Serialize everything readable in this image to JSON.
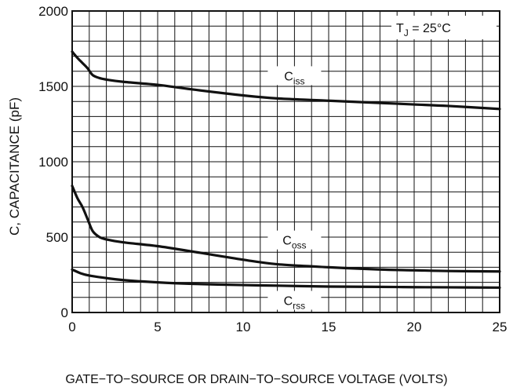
{
  "chart_data": {
    "type": "line",
    "title": "",
    "xlabel": "GATE−TO−SOURCE OR DRAIN−TO−SOURCE VOLTAGE (VOLTS)",
    "ylabel": "C, CAPACITANCE (pF)",
    "xlim": [
      0,
      25
    ],
    "ylim": [
      0,
      2000
    ],
    "x_ticks": [
      0,
      5,
      10,
      15,
      20,
      25
    ],
    "y_ticks": [
      0,
      500,
      1000,
      1500,
      2000
    ],
    "grid": true,
    "annotation": {
      "main": "T",
      "sub": "J",
      "rest": " = 25°C"
    },
    "series": [
      {
        "name": "Ciss",
        "label_main": "C",
        "label_sub": "iss",
        "x": [
          0,
          0.3,
          0.6,
          0.9,
          1.2,
          1.6,
          2,
          3,
          5,
          7,
          10,
          12,
          15,
          18,
          20,
          22,
          25
        ],
        "y": [
          1730,
          1690,
          1655,
          1620,
          1575,
          1555,
          1545,
          1530,
          1510,
          1480,
          1440,
          1420,
          1405,
          1390,
          1380,
          1370,
          1350
        ]
      },
      {
        "name": "Coss",
        "label_main": "C",
        "label_sub": "oss",
        "x": [
          0,
          0.3,
          0.6,
          0.9,
          1.2,
          1.6,
          2,
          3,
          5,
          7,
          10,
          12,
          15,
          18,
          20,
          22,
          25
        ],
        "y": [
          840,
          760,
          700,
          620,
          540,
          500,
          485,
          465,
          440,
          405,
          350,
          320,
          300,
          285,
          280,
          275,
          272
        ]
      },
      {
        "name": "Crss",
        "label_main": "C",
        "label_sub": "rss",
        "x": [
          0,
          0.5,
          1,
          2,
          3,
          5,
          7,
          10,
          12,
          15,
          18,
          20,
          22,
          25
        ],
        "y": [
          285,
          260,
          245,
          228,
          215,
          200,
          190,
          182,
          178,
          172,
          170,
          168,
          167,
          165
        ]
      }
    ],
    "curve_label_positions": [
      {
        "x": 13,
        "y": 1550
      },
      {
        "x": 13,
        "y": 460
      },
      {
        "x": 13,
        "y": 60
      }
    ]
  }
}
